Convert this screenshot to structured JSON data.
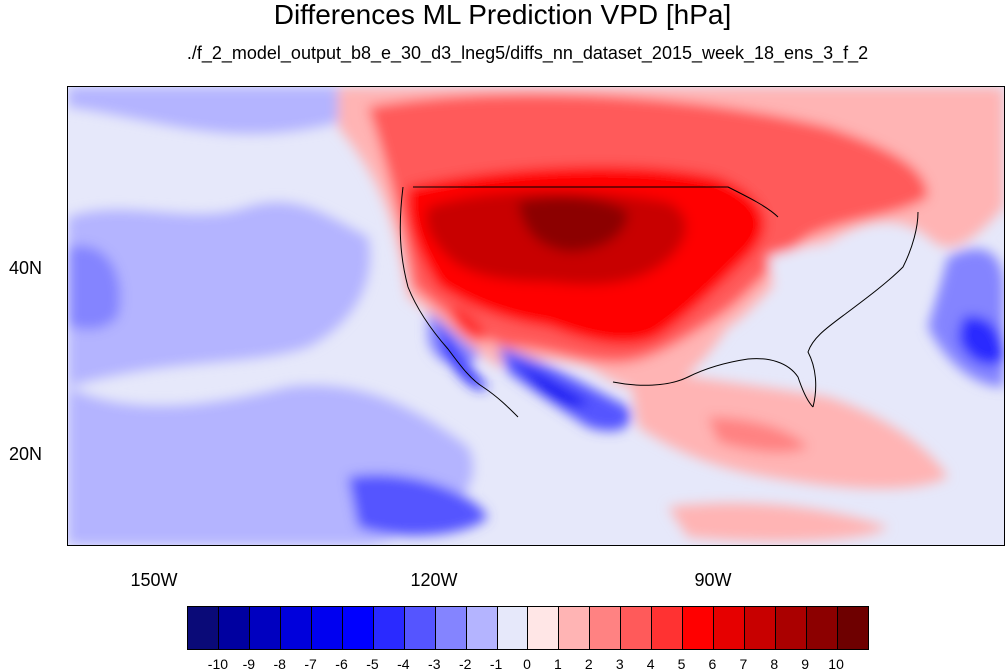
{
  "title": "Differences ML Prediction VPD [hPa]",
  "subtitle": "./f_2_model_output_b8_e_30_d3_lneg5/diffs_nn_dataset_2015_week_18_ens_3_f_2",
  "map": {
    "lon_labels": [
      "150W",
      "120W",
      "90W"
    ],
    "lat_labels": [
      "40N",
      "20N"
    ]
  },
  "colorbar": {
    "labels": [
      "-10",
      "-9",
      "-8",
      "-7",
      "-6",
      "-5",
      "-4",
      "-3",
      "-2",
      "-1",
      "0",
      "1",
      "2",
      "3",
      "4",
      "5",
      "6",
      "7",
      "8",
      "9",
      "10"
    ],
    "colors": [
      "#0a0a78",
      "#0000a0",
      "#0000c0",
      "#0000dc",
      "#0000f0",
      "#0000ff",
      "#2a2aff",
      "#5555ff",
      "#8484ff",
      "#b4b4ff",
      "#e6e8fa",
      "#ffe6e6",
      "#ffb4b4",
      "#ff8282",
      "#ff5a5a",
      "#ff3232",
      "#ff0000",
      "#e60000",
      "#c80000",
      "#aa0000",
      "#8c0000",
      "#6e0000"
    ]
  }
}
